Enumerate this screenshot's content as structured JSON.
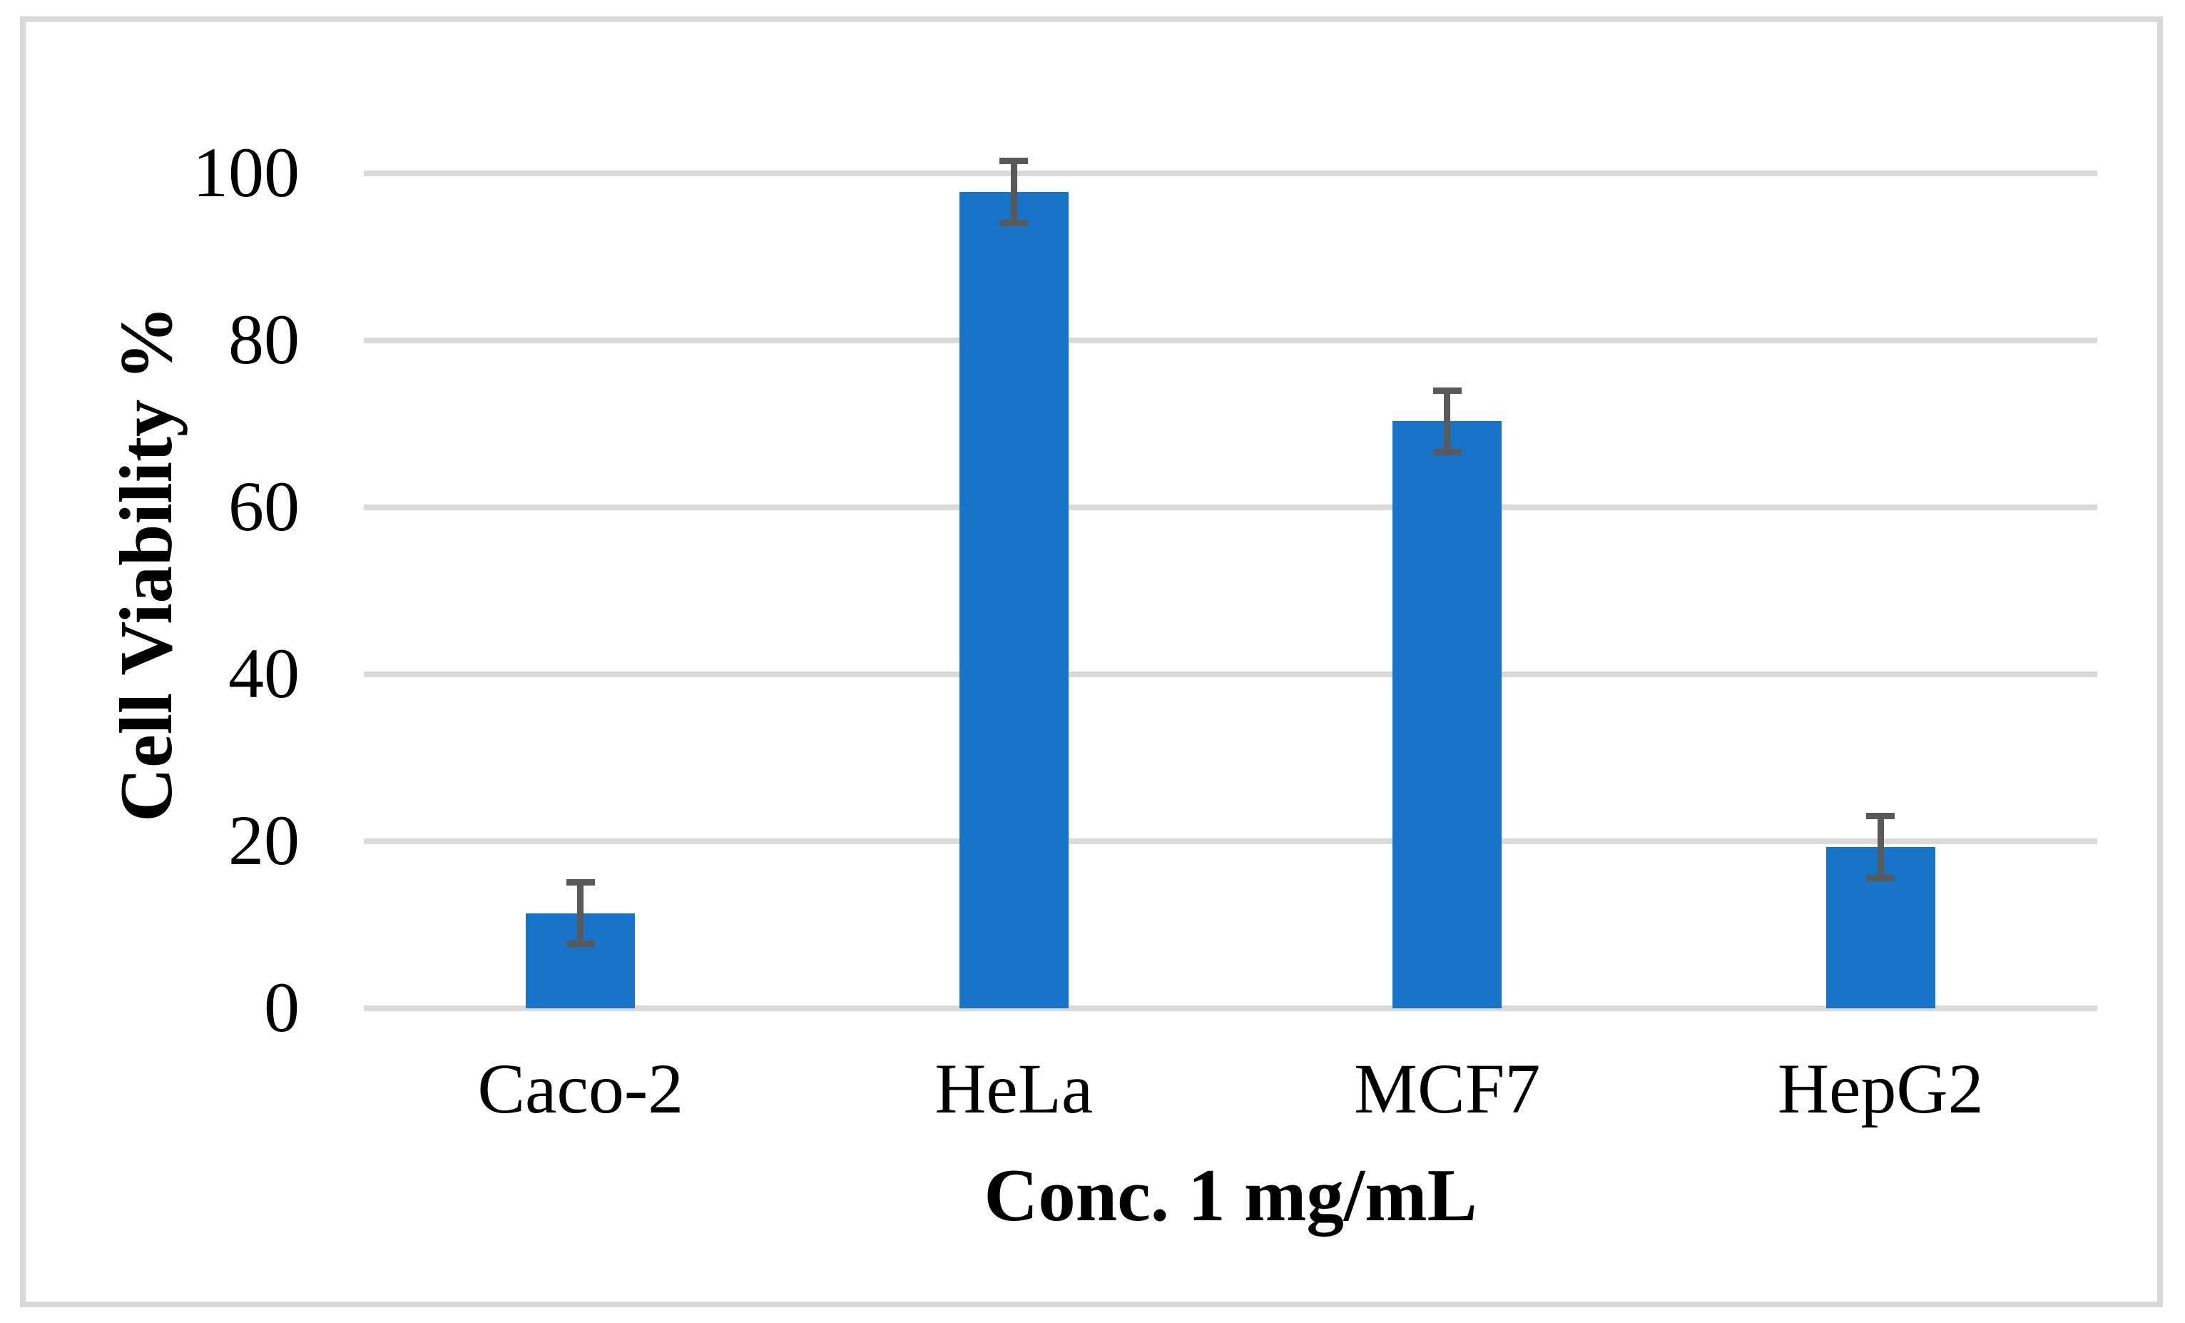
{
  "chart_data": {
    "type": "bar",
    "categories": [
      "Caco-2",
      "HeLa",
      "MCF7",
      "HepG2"
    ],
    "values": [
      11.4,
      97.8,
      70.3,
      19.3
    ],
    "errors": [
      3.7,
      3.7,
      3.7,
      3.7
    ],
    "yticks": [
      0,
      20,
      40,
      60,
      80,
      100
    ],
    "ylim": [
      0,
      100
    ],
    "ylabel": "Cell Viability %",
    "xlabel": "Conc. 1 mg/mL",
    "grid": true,
    "legend": "none",
    "bar_color": "#1774C9",
    "error_bar_color": "#595959",
    "gridline_color": "#D9D9D9",
    "border_color": "#D9D9D9",
    "text_color": "#000000",
    "background_color": "#FFFFFF"
  }
}
